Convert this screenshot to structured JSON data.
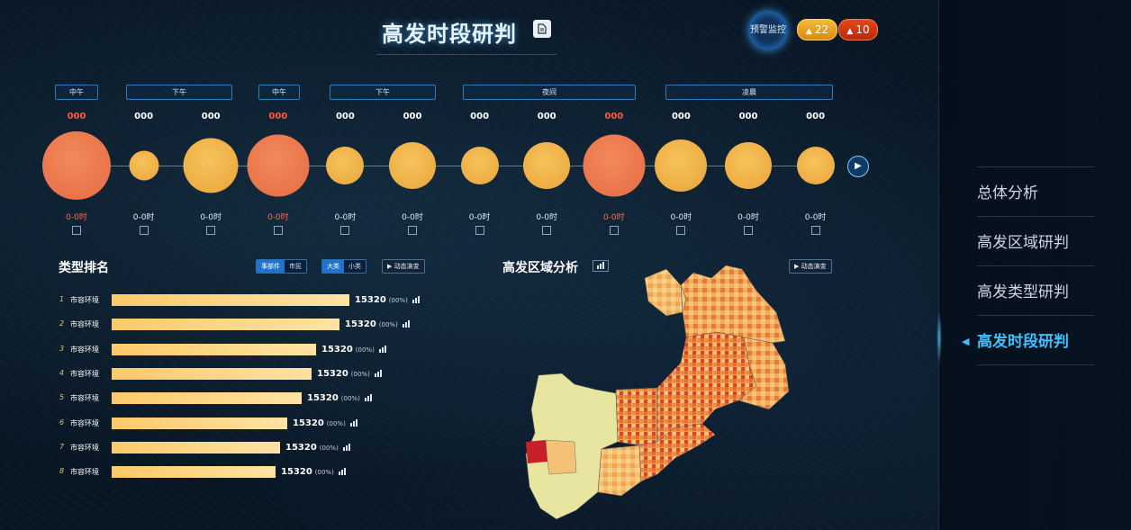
{
  "header": {
    "title": "高发时段研判",
    "alarm_label": "预警监控",
    "badge_warning": "22",
    "badge_alert": "10"
  },
  "nav": {
    "items": [
      {
        "label": "总体分析",
        "active": false
      },
      {
        "label": "高发区域研判",
        "active": false
      },
      {
        "label": "高发类型研判",
        "active": false
      },
      {
        "label": "高发时段研判",
        "active": true
      }
    ]
  },
  "timeline": {
    "periods": [
      "中午",
      "下午",
      "中午",
      "下午",
      "夜间",
      "凌晨"
    ],
    "points": [
      {
        "value": "000",
        "time": "0-0时",
        "hot": true,
        "level": 1.0
      },
      {
        "value": "000",
        "time": "0-0时",
        "hot": false,
        "level": 0.44
      },
      {
        "value": "000",
        "time": "0-0时",
        "hot": false,
        "level": 0.8
      },
      {
        "value": "000",
        "time": "0-0时",
        "hot": true,
        "level": 0.91
      },
      {
        "value": "000",
        "time": "0-0时",
        "hot": false,
        "level": 0.55
      },
      {
        "value": "000",
        "time": "0-0时",
        "hot": false,
        "level": 0.68
      },
      {
        "value": "000",
        "time": "0-0时",
        "hot": false,
        "level": 0.55
      },
      {
        "value": "000",
        "time": "0-0时",
        "hot": false,
        "level": 0.68
      },
      {
        "value": "000",
        "time": "0-0时",
        "hot": true,
        "level": 0.91
      },
      {
        "value": "000",
        "time": "0-0时",
        "hot": false,
        "level": 0.76
      },
      {
        "value": "000",
        "time": "0-0时",
        "hot": false,
        "level": 0.68
      },
      {
        "value": "000",
        "time": "0-0时",
        "hot": false,
        "level": 0.55
      }
    ]
  },
  "ranking": {
    "title": "类型排名",
    "toggle_a": [
      "事部件",
      "市民"
    ],
    "toggle_b": [
      "大类",
      "小类"
    ],
    "demo_label": "动态演变",
    "rows": [
      {
        "index": "1",
        "name": "市容环境",
        "value": "15320",
        "pct": "(00%)",
        "share": 1.0
      },
      {
        "index": "2",
        "name": "市容环境",
        "value": "15320",
        "pct": "(00%)",
        "share": 0.96
      },
      {
        "index": "3",
        "name": "市容环境",
        "value": "15320",
        "pct": "(00%)",
        "share": 0.86
      },
      {
        "index": "4",
        "name": "市容环境",
        "value": "15320",
        "pct": "(00%)",
        "share": 0.84
      },
      {
        "index": "5",
        "name": "市容环境",
        "value": "15320",
        "pct": "(00%)",
        "share": 0.8
      },
      {
        "index": "6",
        "name": "市容环境",
        "value": "15320",
        "pct": "(00%)",
        "share": 0.74
      },
      {
        "index": "7",
        "name": "市容环境",
        "value": "15320",
        "pct": "(00%)",
        "share": 0.71
      },
      {
        "index": "8",
        "name": "市容环境",
        "value": "15320",
        "pct": "(00%)",
        "share": 0.69
      }
    ]
  },
  "region": {
    "title": "高发区域分析",
    "demo_label": "动态演变"
  },
  "colors": {
    "accent": "#3fc0ff",
    "bubble_gold": "#efb14a",
    "bubble_hot": "#e8714b",
    "bar": "#fcd07a",
    "map_low": "#e9e6a0",
    "map_mid": "#f2a35a",
    "map_high": "#e0442a"
  }
}
